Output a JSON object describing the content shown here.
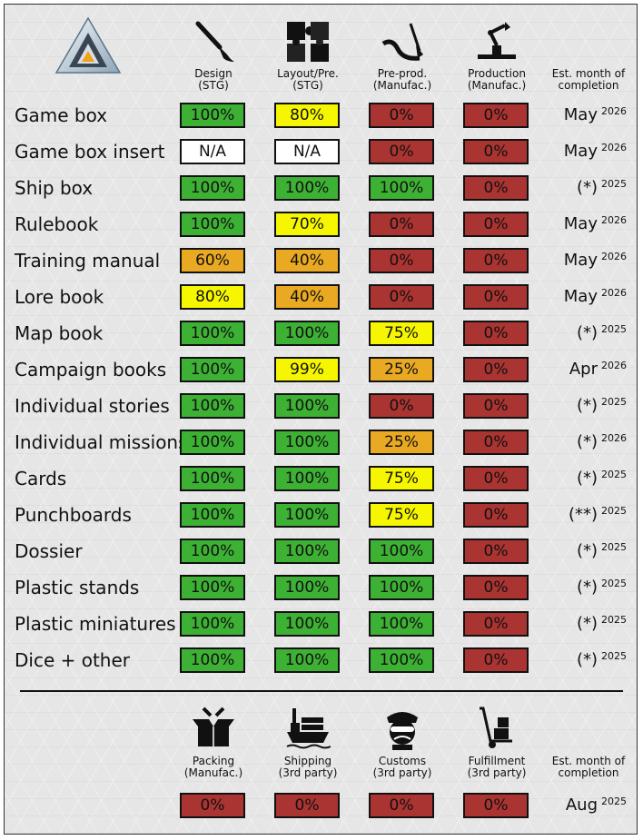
{
  "colors": {
    "green": "#3db134",
    "yellow": "#f6f600",
    "orange": "#eaa922",
    "red": "#a93431",
    "white": "#ffffff"
  },
  "logo": {
    "icon": "triangle-logo-icon"
  },
  "columns": [
    {
      "label": "Design",
      "sub": "(STG)",
      "icon": "paintbrush-icon"
    },
    {
      "label": "Layout/Pre.",
      "sub": "(STG)",
      "icon": "puzzle-icon"
    },
    {
      "label": "Pre-prod.",
      "sub": "(Manufac.)",
      "icon": "tools-icon"
    },
    {
      "label": "Production",
      "sub": "(Manufac.)",
      "icon": "robot-arm-icon"
    }
  ],
  "est_header": {
    "line1": "Est. month of",
    "line2": "completion"
  },
  "rows": [
    {
      "label": "Game box",
      "cells": [
        {
          "text": "100%",
          "status": "green"
        },
        {
          "text": "80%",
          "status": "yellow"
        },
        {
          "text": "0%",
          "status": "red"
        },
        {
          "text": "0%",
          "status": "red"
        }
      ],
      "month": "May",
      "year": "2026"
    },
    {
      "label": "Game box insert",
      "cells": [
        {
          "text": "N/A",
          "status": "white"
        },
        {
          "text": "N/A",
          "status": "white"
        },
        {
          "text": "0%",
          "status": "red"
        },
        {
          "text": "0%",
          "status": "red"
        }
      ],
      "month": "May",
      "year": "2026"
    },
    {
      "label": "Ship box",
      "cells": [
        {
          "text": "100%",
          "status": "green"
        },
        {
          "text": "100%",
          "status": "green"
        },
        {
          "text": "100%",
          "status": "green"
        },
        {
          "text": "0%",
          "status": "red"
        }
      ],
      "month": "(*)",
      "year": "2025"
    },
    {
      "label": "Rulebook",
      "cells": [
        {
          "text": "100%",
          "status": "green"
        },
        {
          "text": "70%",
          "status": "yellow"
        },
        {
          "text": "0%",
          "status": "red"
        },
        {
          "text": "0%",
          "status": "red"
        }
      ],
      "month": "May",
      "year": "2026"
    },
    {
      "label": "Training manual",
      "cells": [
        {
          "text": "60%",
          "status": "orange"
        },
        {
          "text": "40%",
          "status": "orange"
        },
        {
          "text": "0%",
          "status": "red"
        },
        {
          "text": "0%",
          "status": "red"
        }
      ],
      "month": "May",
      "year": "2026"
    },
    {
      "label": "Lore book",
      "cells": [
        {
          "text": "80%",
          "status": "yellow"
        },
        {
          "text": "40%",
          "status": "orange"
        },
        {
          "text": "0%",
          "status": "red"
        },
        {
          "text": "0%",
          "status": "red"
        }
      ],
      "month": "May",
      "year": "2026"
    },
    {
      "label": "Map book",
      "cells": [
        {
          "text": "100%",
          "status": "green"
        },
        {
          "text": "100%",
          "status": "green"
        },
        {
          "text": "75%",
          "status": "yellow"
        },
        {
          "text": "0%",
          "status": "red"
        }
      ],
      "month": "(*)",
      "year": "2025"
    },
    {
      "label": "Campaign books",
      "cells": [
        {
          "text": "100%",
          "status": "green"
        },
        {
          "text": "99%",
          "status": "yellow"
        },
        {
          "text": "25%",
          "status": "orange"
        },
        {
          "text": "0%",
          "status": "red"
        }
      ],
      "month": "Apr",
      "year": "2026"
    },
    {
      "label": "Individual stories",
      "cells": [
        {
          "text": "100%",
          "status": "green"
        },
        {
          "text": "100%",
          "status": "green"
        },
        {
          "text": "0%",
          "status": "red"
        },
        {
          "text": "0%",
          "status": "red"
        }
      ],
      "month": "(*)",
      "year": "2025"
    },
    {
      "label": "Individual missions",
      "cells": [
        {
          "text": "100%",
          "status": "green"
        },
        {
          "text": "100%",
          "status": "green"
        },
        {
          "text": "25%",
          "status": "orange"
        },
        {
          "text": "0%",
          "status": "red"
        }
      ],
      "month": "(*)",
      "year": "2026"
    },
    {
      "label": "Cards",
      "cells": [
        {
          "text": "100%",
          "status": "green"
        },
        {
          "text": "100%",
          "status": "green"
        },
        {
          "text": "75%",
          "status": "yellow"
        },
        {
          "text": "0%",
          "status": "red"
        }
      ],
      "month": "(*)",
      "year": "2025"
    },
    {
      "label": "Punchboards",
      "cells": [
        {
          "text": "100%",
          "status": "green"
        },
        {
          "text": "100%",
          "status": "green"
        },
        {
          "text": "75%",
          "status": "yellow"
        },
        {
          "text": "0%",
          "status": "red"
        }
      ],
      "month": "(**)",
      "year": "2025"
    },
    {
      "label": "Dossier",
      "cells": [
        {
          "text": "100%",
          "status": "green"
        },
        {
          "text": "100%",
          "status": "green"
        },
        {
          "text": "100%",
          "status": "green"
        },
        {
          "text": "0%",
          "status": "red"
        }
      ],
      "month": "(*)",
      "year": "2025"
    },
    {
      "label": "Plastic stands",
      "cells": [
        {
          "text": "100%",
          "status": "green"
        },
        {
          "text": "100%",
          "status": "green"
        },
        {
          "text": "100%",
          "status": "green"
        },
        {
          "text": "0%",
          "status": "red"
        }
      ],
      "month": "(*)",
      "year": "2025"
    },
    {
      "label": "Plastic miniatures",
      "cells": [
        {
          "text": "100%",
          "status": "green"
        },
        {
          "text": "100%",
          "status": "green"
        },
        {
          "text": "100%",
          "status": "green"
        },
        {
          "text": "0%",
          "status": "red"
        }
      ],
      "month": "(*)",
      "year": "2025"
    },
    {
      "label": "Dice + other",
      "cells": [
        {
          "text": "100%",
          "status": "green"
        },
        {
          "text": "100%",
          "status": "green"
        },
        {
          "text": "100%",
          "status": "green"
        },
        {
          "text": "0%",
          "status": "red"
        }
      ],
      "month": "(*)",
      "year": "2025"
    }
  ],
  "bottom_columns": [
    {
      "label": "Packing",
      "sub": "(Manufac.)",
      "icon": "open-box-icon"
    },
    {
      "label": "Shipping",
      "sub": "(3rd party)",
      "icon": "cargo-ship-icon"
    },
    {
      "label": "Customs",
      "sub": "(3rd party)",
      "icon": "customs-officer-icon"
    },
    {
      "label": "Fulfillment",
      "sub": "(3rd party)",
      "icon": "hand-truck-icon"
    }
  ],
  "bottom_est_header": {
    "line1": "Est. month of",
    "line2": "completion"
  },
  "bottom_row": {
    "cells": [
      {
        "text": "0%",
        "status": "red"
      },
      {
        "text": "0%",
        "status": "red"
      },
      {
        "text": "0%",
        "status": "red"
      },
      {
        "text": "0%",
        "status": "red"
      }
    ],
    "month": "Aug",
    "year": "2025"
  }
}
